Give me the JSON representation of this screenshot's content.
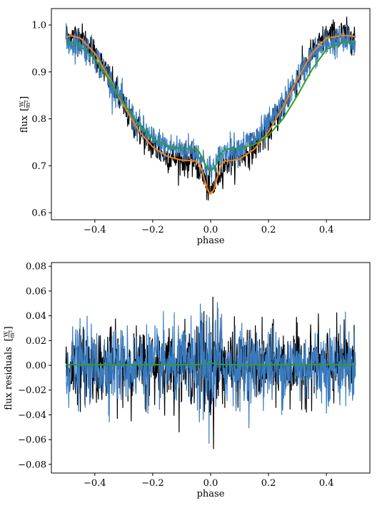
{
  "chart_data": [
    {
      "type": "line",
      "xlabel": "phase",
      "ylabel": "flux",
      "ylabel_unit_num": "W",
      "ylabel_unit_den": "m²",
      "xlim": [
        -0.55,
        0.55
      ],
      "ylim": [
        0.585,
        1.035
      ],
      "x_ticks": [
        -0.4,
        -0.2,
        0.0,
        0.2,
        0.4
      ],
      "x_tick_labels": [
        "−0.4",
        "−0.2",
        "0.0",
        "0.2",
        "0.4"
      ],
      "y_ticks": [
        0.6,
        0.7,
        0.8,
        0.9,
        1.0
      ],
      "y_tick_labels": [
        "0.6",
        "0.7",
        "0.8",
        "0.9",
        "1.0"
      ],
      "grid": false,
      "series": [
        {
          "color": "#000000",
          "style": "noisy-data",
          "x": [
            -0.5,
            -0.45,
            -0.4,
            -0.35,
            -0.3,
            -0.25,
            -0.2,
            -0.15,
            -0.1,
            -0.07,
            -0.05,
            -0.03,
            -0.01,
            0.0,
            0.01,
            0.03,
            0.05,
            0.07,
            0.1,
            0.15,
            0.2,
            0.25,
            0.3,
            0.35,
            0.4,
            0.45,
            0.5
          ],
          "y": [
            0.975,
            0.975,
            0.94,
            0.885,
            0.825,
            0.775,
            0.74,
            0.72,
            0.712,
            0.71,
            0.705,
            0.685,
            0.655,
            0.642,
            0.655,
            0.685,
            0.705,
            0.712,
            0.718,
            0.74,
            0.775,
            0.825,
            0.885,
            0.94,
            0.975,
            0.98,
            0.975
          ],
          "noise": 0.018
        },
        {
          "color": "#3a7bbf",
          "style": "noisy-data",
          "x": [
            -0.5,
            -0.45,
            -0.4,
            -0.35,
            -0.3,
            -0.25,
            -0.2,
            -0.15,
            -0.1,
            -0.07,
            -0.05,
            -0.03,
            -0.01,
            0.0,
            0.01,
            0.03,
            0.05,
            0.07,
            0.1,
            0.15,
            0.2,
            0.25,
            0.3,
            0.35,
            0.4,
            0.45,
            0.5
          ],
          "y": [
            0.965,
            0.96,
            0.935,
            0.885,
            0.83,
            0.785,
            0.755,
            0.74,
            0.735,
            0.735,
            0.73,
            0.715,
            0.695,
            0.69,
            0.695,
            0.715,
            0.73,
            0.735,
            0.738,
            0.755,
            0.785,
            0.83,
            0.885,
            0.935,
            0.96,
            0.965,
            0.96
          ],
          "noise": 0.018
        },
        {
          "color": "#ff7f0e",
          "style": "model",
          "x": [
            -0.5,
            -0.48,
            -0.45,
            -0.4,
            -0.35,
            -0.3,
            -0.25,
            -0.2,
            -0.15,
            -0.1,
            -0.07,
            -0.05,
            -0.04,
            -0.03,
            -0.02,
            -0.01,
            0.0,
            0.01,
            0.02,
            0.03,
            0.04,
            0.05,
            0.07,
            0.1,
            0.15,
            0.2,
            0.25,
            0.3,
            0.35,
            0.4,
            0.45,
            0.48,
            0.5
          ],
          "y": [
            0.975,
            0.977,
            0.972,
            0.94,
            0.887,
            0.828,
            0.776,
            0.74,
            0.72,
            0.712,
            0.711,
            0.71,
            0.705,
            0.69,
            0.668,
            0.648,
            0.64,
            0.648,
            0.668,
            0.69,
            0.705,
            0.71,
            0.711,
            0.714,
            0.735,
            0.772,
            0.825,
            0.885,
            0.94,
            0.972,
            0.977,
            0.977,
            0.975
          ]
        },
        {
          "color": "#2ca02c",
          "style": "model",
          "x": [
            -0.5,
            -0.48,
            -0.45,
            -0.4,
            -0.35,
            -0.3,
            -0.25,
            -0.2,
            -0.15,
            -0.1,
            -0.07,
            -0.05,
            -0.04,
            -0.03,
            -0.02,
            -0.01,
            0.0,
            0.01,
            0.02,
            0.03,
            0.04,
            0.05,
            0.07,
            0.1,
            0.15,
            0.2,
            0.25,
            0.3,
            0.35,
            0.4,
            0.45,
            0.48,
            0.5
          ],
          "y": [
            0.965,
            0.963,
            0.955,
            0.928,
            0.883,
            0.833,
            0.789,
            0.758,
            0.742,
            0.737,
            0.736,
            0.735,
            0.73,
            0.718,
            0.703,
            0.694,
            0.69,
            0.694,
            0.703,
            0.718,
            0.73,
            0.735,
            0.736,
            0.737,
            0.745,
            0.765,
            0.8,
            0.85,
            0.905,
            0.948,
            0.962,
            0.964,
            0.963
          ]
        }
      ]
    },
    {
      "type": "line",
      "xlabel": "phase",
      "ylabel": "flux residuals",
      "ylabel_unit_num": "W",
      "ylabel_unit_den": "m²",
      "xlim": [
        -0.55,
        0.55
      ],
      "ylim": [
        -0.087,
        0.083
      ],
      "x_ticks": [
        -0.4,
        -0.2,
        0.0,
        0.2,
        0.4
      ],
      "x_tick_labels": [
        "−0.4",
        "−0.2",
        "0.0",
        "0.2",
        "0.4"
      ],
      "y_ticks": [
        -0.08,
        -0.06,
        -0.04,
        -0.02,
        0.0,
        0.02,
        0.04,
        0.06,
        0.08
      ],
      "y_tick_labels": [
        "−0.08",
        "−0.06",
        "−0.04",
        "−0.02",
        "0.00",
        "0.02",
        "0.04",
        "0.06",
        "0.08"
      ],
      "grid": false,
      "series": [
        {
          "color": "#000000",
          "style": "noisy-residual",
          "x": [
            -0.5,
            0.5
          ],
          "y": [
            0.0,
            0.0
          ],
          "noise": 0.016
        },
        {
          "color": "#3a7bbf",
          "style": "noisy-residual",
          "x": [
            -0.5,
            0.5
          ],
          "y": [
            0.0,
            0.0
          ],
          "noise": 0.017
        },
        {
          "color": "#2ca02c",
          "style": "model",
          "x": [
            -0.5,
            -0.05,
            -0.02,
            0.0,
            0.02,
            0.05,
            0.5
          ],
          "y": [
            0.0005,
            0.0005,
            0.001,
            0.002,
            0.001,
            0.0005,
            0.0005
          ]
        }
      ]
    }
  ]
}
